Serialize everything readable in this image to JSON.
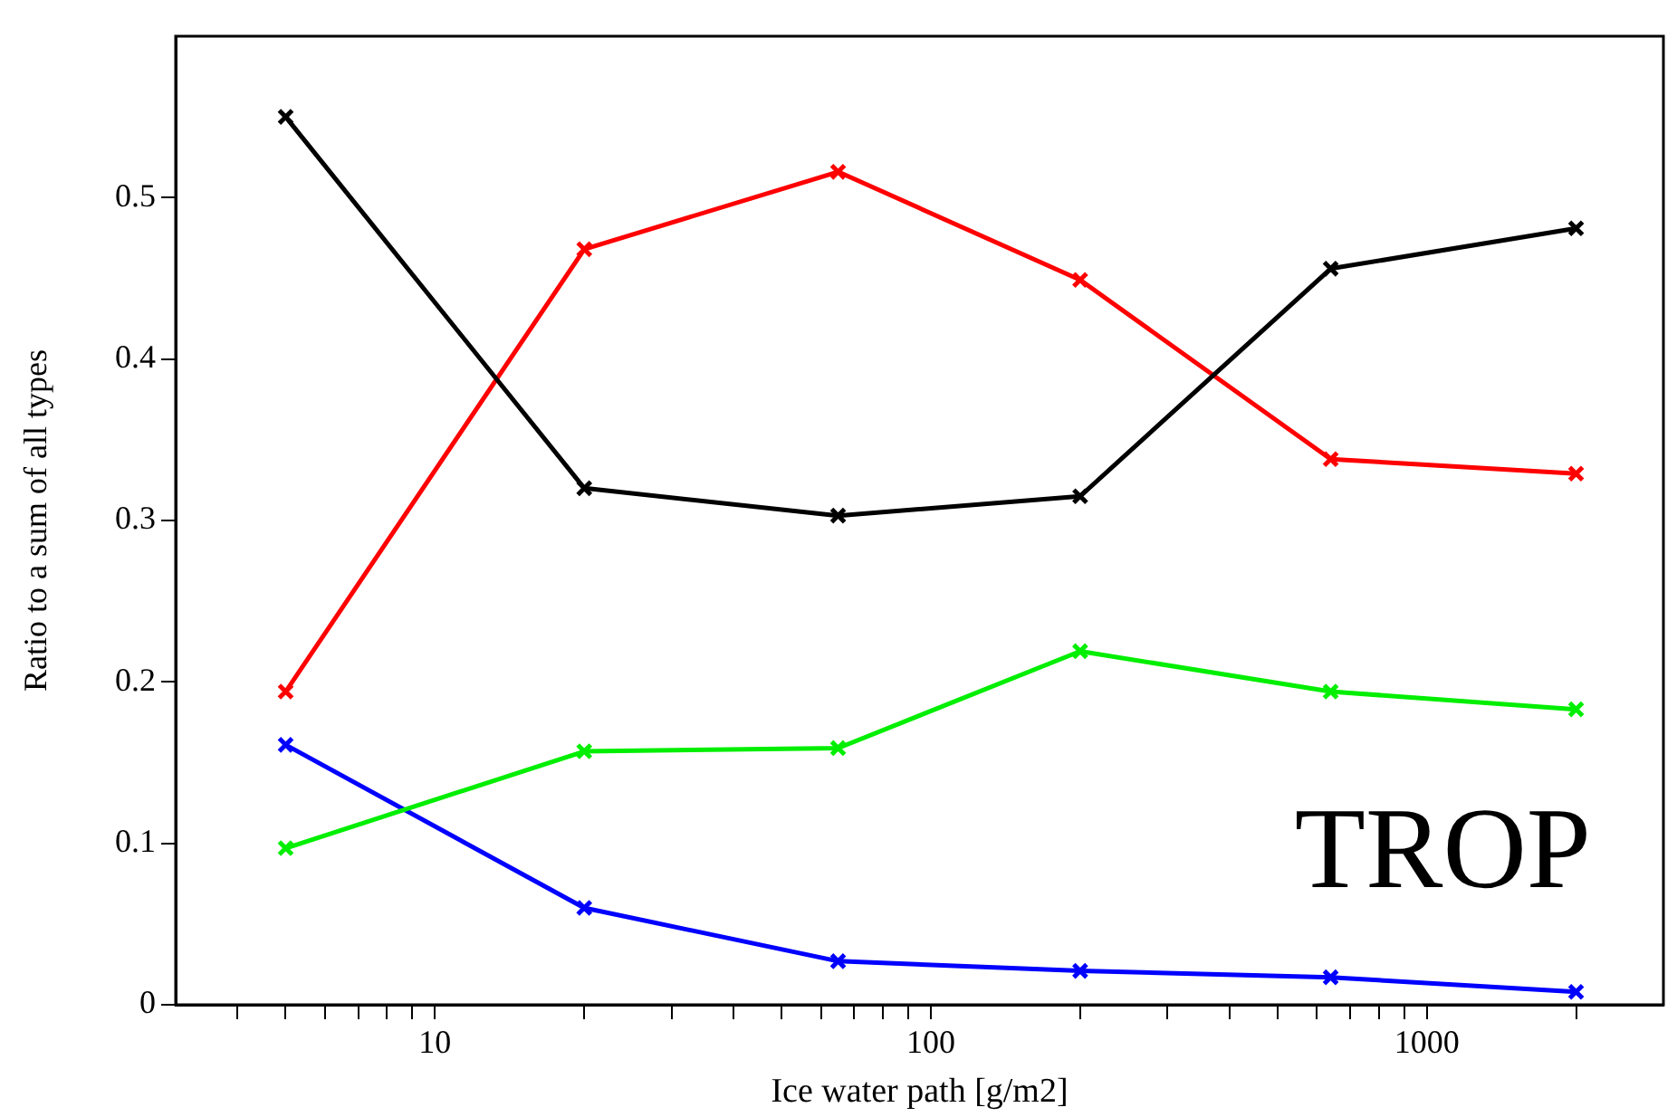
{
  "chart_data": {
    "type": "line",
    "xlabel": "Ice water path [g/m2]",
    "ylabel": "Ratio to a sum of all types",
    "log": "x",
    "x": [
      5,
      20,
      65,
      200,
      640,
      2000
    ],
    "series": [
      {
        "color": "#000000",
        "values": [
          0.55,
          0.32,
          0.303,
          0.315,
          0.456,
          0.481
        ]
      },
      {
        "color": "#ff0000",
        "values": [
          0.194,
          0.468,
          0.516,
          0.449,
          0.338,
          0.329
        ]
      },
      {
        "color": "#00ee00",
        "values": [
          0.097,
          0.157,
          0.159,
          0.219,
          0.194,
          0.183
        ]
      },
      {
        "color": "#0000ff",
        "values": [
          0.161,
          0.06,
          0.027,
          0.021,
          0.017,
          0.008
        ]
      }
    ],
    "xlim": [
      3,
      3000
    ],
    "xticks": [
      {
        "value": 4,
        "label": null
      },
      {
        "value": 5,
        "label": null
      },
      {
        "value": 6,
        "label": null
      },
      {
        "value": 7,
        "label": null
      },
      {
        "value": 8,
        "label": null
      },
      {
        "value": 9,
        "label": null
      },
      10,
      {
        "value": 20,
        "label": null
      },
      {
        "value": 30,
        "label": null
      },
      {
        "value": 40,
        "label": null
      },
      {
        "value": 50,
        "label": null
      },
      {
        "value": 60,
        "label": null
      },
      {
        "value": 70,
        "label": null
      },
      {
        "value": 80,
        "label": null
      },
      {
        "value": 90,
        "label": null
      },
      100,
      {
        "value": 200,
        "label": null
      },
      {
        "value": 300,
        "label": null
      },
      {
        "value": 400,
        "label": null
      },
      {
        "value": 500,
        "label": null
      },
      {
        "value": 600,
        "label": null
      },
      {
        "value": 700,
        "label": null
      },
      {
        "value": 800,
        "label": null
      },
      {
        "value": 900,
        "label": null
      },
      1000,
      {
        "value": 2000,
        "label": null
      }
    ],
    "ylim": [
      0,
      0.6
    ],
    "yticks": [
      0,
      0.1,
      0.2,
      0.3,
      0.4,
      0.5
    ],
    "grid": false,
    "legend": false,
    "marker": "cross",
    "line_style": "solid",
    "annotations": [
      "TROP"
    ]
  }
}
